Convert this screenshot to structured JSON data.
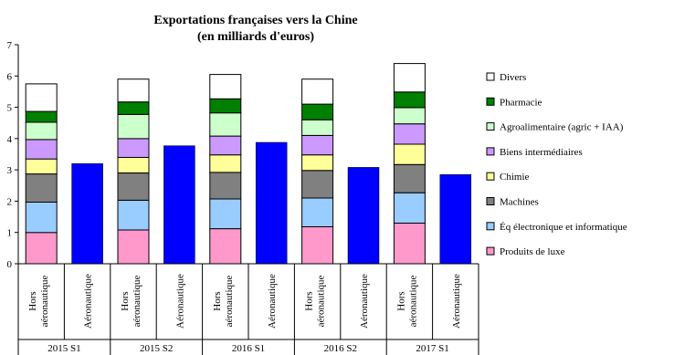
{
  "chart_data": {
    "type": "bar",
    "stacked": true,
    "title": "Exportations françaises vers la Chine",
    "subtitle": "(en milliards d'euros)",
    "ylim": [
      0,
      7
    ],
    "yticks": [
      0,
      1,
      2,
      3,
      4,
      5,
      6,
      7
    ],
    "grid": false,
    "legend_position": "right",
    "groups": [
      "2015 S1",
      "2015 S2",
      "2016 S1",
      "2016 S2",
      "2017 S1"
    ],
    "bar_labels": {
      "hors_line1": "Hors",
      "hors_line2": "aéronautique",
      "aero": "Aéronautique"
    },
    "series": [
      {
        "name": "Produits de luxe",
        "color": "#ff99cc",
        "values": [
          1.0,
          1.08,
          1.12,
          1.18,
          1.3
        ]
      },
      {
        "name": "Éq électronique et informatique",
        "color": "#99ccff",
        "values": [
          0.97,
          0.95,
          0.95,
          0.92,
          0.97
        ]
      },
      {
        "name": "Machines",
        "color": "#808080",
        "values": [
          0.9,
          0.87,
          0.85,
          0.88,
          0.9
        ]
      },
      {
        "name": "Chimie",
        "color": "#ffff99",
        "values": [
          0.48,
          0.5,
          0.56,
          0.5,
          0.65
        ]
      },
      {
        "name": "Biens intermédiaires",
        "color": "#cc99ff",
        "values": [
          0.62,
          0.6,
          0.6,
          0.62,
          0.65
        ]
      },
      {
        "name": "Agroalimentaire (agric + IAA)",
        "color": "#ccffcc",
        "values": [
          0.55,
          0.77,
          0.74,
          0.5,
          0.52
        ]
      },
      {
        "name": "Pharmacie",
        "color": "#008000",
        "values": [
          0.35,
          0.4,
          0.45,
          0.5,
          0.5
        ]
      },
      {
        "name": "Divers",
        "color": "#ffffff",
        "values": [
          0.88,
          0.73,
          0.78,
          0.8,
          0.91
        ]
      }
    ],
    "aeronautique": {
      "name": "Aéronautique",
      "color": "#0000ff",
      "values": [
        3.2,
        3.77,
        3.88,
        3.08,
        2.85
      ]
    }
  }
}
